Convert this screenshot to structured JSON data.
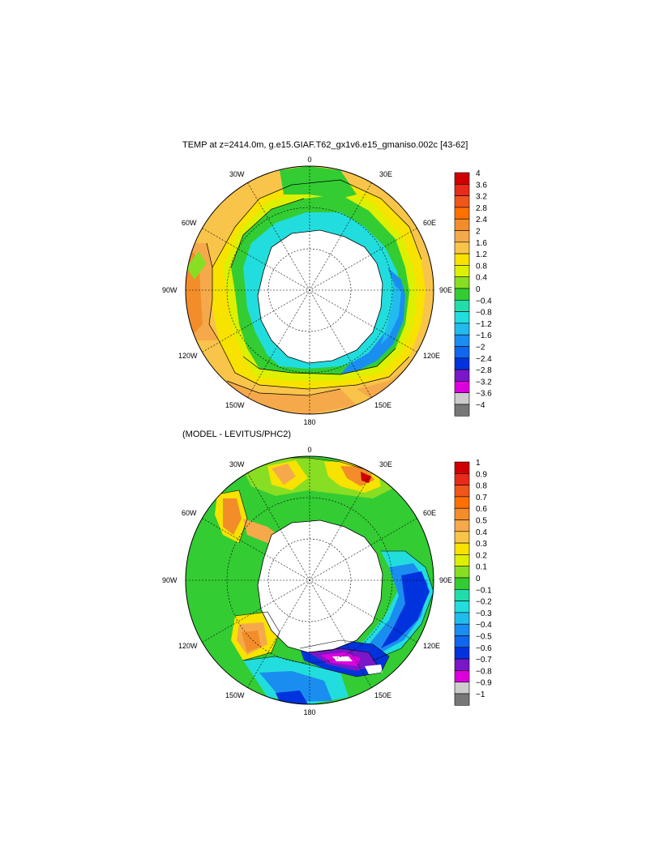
{
  "panels": [
    {
      "title": "TEMP at z=2414.0m, g.e15.GIAF.T62_gx1v6.e15_gmaniso.002c [43-62]",
      "lon_labels": [
        "0",
        "30E",
        "60E",
        "90E",
        "120E",
        "150E",
        "180",
        "150W",
        "120W",
        "90W",
        "60W",
        "30W"
      ],
      "colorbar": {
        "labels": [
          "4",
          "3.6",
          "3.2",
          "2.8",
          "2.4",
          "2",
          "1.6",
          "1.2",
          "0.8",
          "0.4",
          "0",
          "−0.4",
          "−0.8",
          "−1.2",
          "−1.6",
          "−2",
          "−2.4",
          "−2.8",
          "−3.2",
          "−3.6",
          "−4"
        ],
        "colors": [
          "#d00000",
          "#e82a1a",
          "#f0551a",
          "#ff7000",
          "#f28d2a",
          "#f6a94a",
          "#f8c44a",
          "#f8e200",
          "#ddf000",
          "#88de22",
          "#33cc33",
          "#22ddaa",
          "#22dddd",
          "#22bbee",
          "#1a8ef0",
          "#1166ee",
          "#0033dd",
          "#7a17c8",
          "#dd00dd",
          "#cccccc",
          "#777777"
        ]
      }
    },
    {
      "title": "(MODEL - LEVITUS/PHC2)",
      "lon_labels": [
        "0",
        "30E",
        "60E",
        "90E",
        "120E",
        "150E",
        "180",
        "150W",
        "120W",
        "90W",
        "60W",
        "30W"
      ],
      "colorbar": {
        "labels": [
          "1",
          "0.9",
          "0.8",
          "0.7",
          "0.6",
          "0.5",
          "0.4",
          "0.3",
          "0.2",
          "0.1",
          "0",
          "−0.1",
          "−0.2",
          "−0.3",
          "−0.4",
          "−0.5",
          "−0.6",
          "−0.7",
          "−0.8",
          "−0.9",
          "−1"
        ],
        "colors": [
          "#d00000",
          "#e82a1a",
          "#f0551a",
          "#ff7000",
          "#f28d2a",
          "#f6a94a",
          "#f8c44a",
          "#f8e200",
          "#ddf000",
          "#88de22",
          "#33cc33",
          "#22ddaa",
          "#22dddd",
          "#22bbee",
          "#1a8ef0",
          "#1166ee",
          "#0033dd",
          "#7a17c8",
          "#dd00dd",
          "#cccccc",
          "#777777"
        ]
      }
    }
  ]
}
